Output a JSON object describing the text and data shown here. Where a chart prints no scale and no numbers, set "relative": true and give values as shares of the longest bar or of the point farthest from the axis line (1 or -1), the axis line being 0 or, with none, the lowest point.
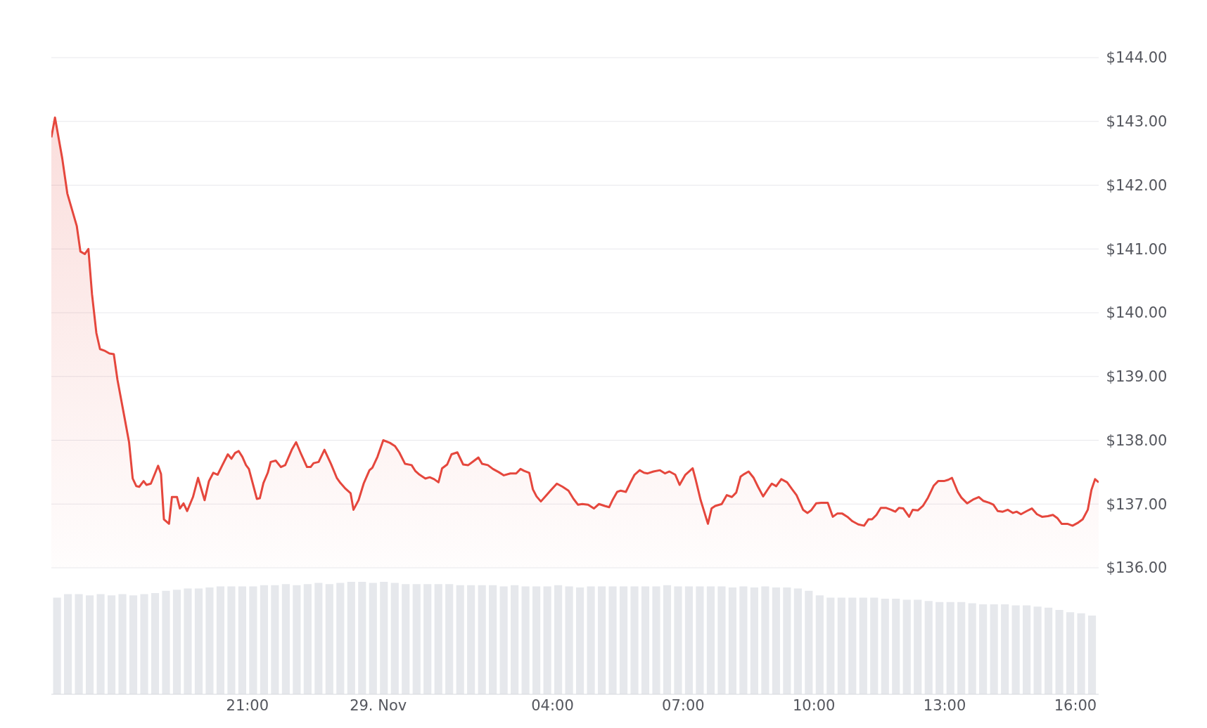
{
  "chart_data": [
    {
      "type": "area",
      "series": [
        {
          "color": "#e5473d",
          "x": [
            "--11-28T16:30",
            "--11-28T16:35",
            "--11-28T16:45",
            "--11-28T16:52",
            "--11-28T17:05",
            "--11-28T17:10",
            "--11-28T17:16",
            "--11-28T17:21",
            "--11-28T17:26",
            "--11-28T17:32",
            "--11-28T17:37",
            "--11-28T17:44",
            "--11-28T17:50",
            "--11-28T17:56",
            "--11-28T18:01",
            "--11-28T18:11",
            "--11-28T18:17",
            "--11-28T18:22",
            "--11-28T18:27",
            "--11-28T18:31",
            "--11-28T18:37",
            "--11-28T18:41",
            "--11-28T18:47",
            "--11-28T18:57",
            "--11-28T19:01",
            "--11-28T19:05",
            "--11-28T19:12",
            "--11-28T19:16",
            "--11-28T19:23",
            "--11-28T19:27",
            "--11-28T19:32",
            "--11-28T19:37",
            "--11-28T19:45",
            "--11-28T19:52",
            "--11-28T20:01",
            "--11-28T20:07",
            "--11-28T20:13",
            "--11-28T20:19",
            "--11-28T20:25",
            "--11-28T20:33",
            "--11-28T20:38",
            "--11-28T20:43",
            "--11-28T20:48",
            "--11-28T20:53",
            "--11-28T20:58",
            "--11-28T21:02",
            "--11-28T21:13",
            "--11-28T21:17",
            "--11-28T21:22",
            "--11-28T21:28",
            "--11-28T21:32",
            "--11-28T21:39",
            "--11-28T21:46",
            "--11-28T21:52",
            "--11-28T22:01",
            "--11-28T22:07",
            "--11-28T22:14",
            "--11-28T22:22",
            "--11-28T22:27",
            "--11-28T22:31",
            "--11-28T22:38",
            "--11-28T22:46",
            "--11-28T22:55",
            "--11-28T23:03",
            "--11-28T23:08",
            "--11-28T23:15",
            "--11-28T23:22",
            "--11-28T23:26",
            "--11-28T23:33",
            "--11-28T23:40",
            "--11-28T23:48",
            "--11-28T23:52",
            "--11-28T23:59",
            "--11-29T00:07",
            "--11-29T00:16",
            "--11-29T00:23",
            "--11-29T00:29",
            "--11-29T00:37",
            "--11-29T00:46",
            "--11-29T00:51",
            "--11-29T00:57",
            "--11-29T01:05",
            "--11-29T01:11",
            "--11-29T01:17",
            "--11-29T01:23",
            "--11-29T01:28",
            "--11-29T01:35",
            "--11-29T01:41",
            "--11-29T01:49",
            "--11-29T01:57",
            "--11-29T02:04",
            "--11-29T02:11",
            "--11-29T02:18",
            "--11-29T02:23",
            "--11-29T02:31",
            "--11-29T02:38",
            "--11-29T02:46",
            "--11-29T02:53",
            "--11-29T03:02",
            "--11-29T03:10",
            "--11-29T03:16",
            "--11-29T03:21",
            "--11-29T03:28",
            "--11-29T03:33",
            "--11-29T03:38",
            "--11-29T03:44",
            "--11-29T03:51",
            "--11-29T03:58",
            "--11-29T04:06",
            "--11-29T04:14",
            "--11-29T04:22",
            "--11-29T04:29",
            "--11-29T04:35",
            "--11-29T04:41",
            "--11-29T04:49",
            "--11-29T04:57",
            "--11-29T05:04",
            "--11-29T05:12",
            "--11-29T05:18",
            "--11-29T05:23",
            "--11-29T05:29",
            "--11-29T05:34",
            "--11-29T05:41",
            "--11-29T05:47",
            "--11-29T05:53",
            "--11-29T06:00",
            "--11-29T06:06",
            "--11-29T06:11",
            "--11-29T06:19",
            "--11-29T06:28",
            "--11-29T06:35",
            "--11-29T06:41",
            "--11-29T06:49",
            "--11-29T06:55",
            "--11-29T07:03",
            "--11-29T07:13",
            "--11-29T07:17",
            "--11-29T07:24",
            "--11-29T07:34",
            "--11-29T07:39",
            "--11-29T07:44",
            "--11-29T07:53",
            "--11-29T08:00",
            "--11-29T08:07",
            "--11-29T08:13",
            "--11-29T08:19",
            "--11-29T08:24",
            "--11-29T08:30",
            "--11-29T08:37",
            "--11-29T08:43",
            "--11-29T08:50",
            "--11-29T08:57",
            "--11-29T09:02",
            "--11-29T09:08",
            "--11-29T09:15",
            "--11-29T09:23",
            "--11-29T09:30",
            "--11-29T09:36",
            "--11-29T09:45",
            "--11-29T09:51",
            "--11-29T09:56",
            "--11-29T10:03",
            "--11-29T10:10",
            "--11-29T10:19",
            "--11-29T10:26",
            "--11-29T10:32",
            "--11-29T10:39",
            "--11-29T10:46",
            "--11-29T10:53",
            "--11-29T11:01",
            "--11-29T11:09",
            "--11-29T11:15",
            "--11-29T11:20",
            "--11-29T11:26",
            "--11-29T11:32",
            "--11-29T11:39",
            "--11-29T11:46",
            "--11-29T11:52",
            "--11-29T11:57",
            "--11-29T12:03",
            "--11-29T12:11",
            "--11-29T12:16",
            "--11-29T12:23",
            "--11-29T12:30",
            "--11-29T12:37",
            "--11-29T12:45",
            "--11-29T12:51",
            "--11-29T12:59",
            "--11-29T13:05",
            "--11-29T13:10",
            "--11-29T13:18",
            "--11-29T13:23",
            "--11-29T13:31",
            "--11-29T13:39",
            "--11-29T13:47",
            "--11-29T13:53",
            "--11-29T14:01",
            "--11-29T14:07",
            "--11-29T14:13",
            "--11-29T14:20",
            "--11-29T14:27",
            "--11-29T14:34",
            "--11-29T14:39",
            "--11-29T14:45",
            "--11-29T14:53",
            "--11-29T15:00",
            "--11-29T15:07",
            "--11-29T15:14",
            "--11-29T15:22",
            "--11-29T15:29",
            "--11-29T15:35",
            "--11-29T15:41",
            "--11-29T15:49",
            "--11-29T15:56",
            "--11-29T16:04",
            "--11-29T16:10",
            "--11-29T16:17",
            "--11-29T16:22",
            "--11-29T16:27",
            "--11-29T16:32"
          ],
          "values": [
            142.75,
            143.06,
            142.42,
            141.87,
            141.36,
            140.96,
            140.92,
            141.0,
            140.29,
            139.68,
            139.43,
            139.4,
            139.36,
            139.35,
            138.95,
            138.34,
            137.97,
            137.4,
            137.28,
            137.27,
            137.36,
            137.3,
            137.32,
            137.6,
            137.47,
            136.76,
            136.69,
            137.11,
            137.11,
            136.93,
            137.01,
            136.89,
            137.11,
            137.41,
            137.06,
            137.36,
            137.49,
            137.46,
            137.6,
            137.78,
            137.71,
            137.8,
            137.83,
            137.74,
            137.61,
            137.55,
            137.08,
            137.09,
            137.33,
            137.49,
            137.66,
            137.68,
            137.58,
            137.61,
            137.85,
            137.97,
            137.78,
            137.58,
            137.58,
            137.64,
            137.66,
            137.85,
            137.63,
            137.41,
            137.33,
            137.24,
            137.17,
            136.91,
            137.06,
            137.32,
            137.53,
            137.57,
            137.74,
            138.0,
            137.96,
            137.91,
            137.81,
            137.63,
            137.61,
            137.52,
            137.46,
            137.4,
            137.42,
            137.39,
            137.34,
            137.56,
            137.62,
            137.78,
            137.81,
            137.62,
            137.61,
            137.67,
            137.73,
            137.63,
            137.61,
            137.55,
            137.5,
            137.45,
            137.48,
            137.48,
            137.55,
            137.52,
            137.49,
            137.23,
            137.12,
            137.04,
            137.13,
            137.22,
            137.32,
            137.27,
            137.21,
            137.08,
            136.99,
            137.0,
            136.99,
            136.93,
            137.0,
            136.97,
            136.95,
            137.07,
            137.19,
            137.21,
            137.19,
            137.33,
            137.46,
            137.53,
            137.49,
            137.48,
            137.51,
            137.53,
            137.48,
            137.51,
            137.46,
            137.3,
            137.46,
            137.56,
            137.39,
            137.06,
            136.69,
            136.93,
            136.97,
            137.0,
            137.14,
            137.11,
            137.18,
            137.43,
            137.47,
            137.51,
            137.41,
            137.27,
            137.12,
            137.24,
            137.32,
            137.28,
            137.39,
            137.34,
            137.23,
            137.14,
            136.91,
            136.86,
            136.9,
            137.01,
            137.02,
            137.02,
            136.8,
            136.85,
            136.85,
            136.8,
            136.73,
            136.68,
            136.66,
            136.76,
            136.76,
            136.83,
            136.94,
            136.94,
            136.91,
            136.88,
            136.94,
            136.93,
            136.8,
            136.91,
            136.9,
            136.97,
            137.1,
            137.29,
            137.36,
            137.36,
            137.38,
            137.41,
            137.19,
            137.1,
            137.01,
            137.07,
            137.11,
            137.05,
            137.02,
            136.99,
            136.89,
            136.88,
            136.91,
            136.86,
            136.88,
            136.84,
            136.89,
            136.93,
            136.84,
            136.8,
            136.81,
            136.83,
            136.78,
            136.69,
            136.69,
            136.66,
            136.71,
            136.76,
            136.91,
            137.22,
            137.39,
            137.34
          ]
        }
      ],
      "xlim": [
        "--11-28T16:30",
        "--11-29T16:32"
      ],
      "ylim": [
        136,
        144
      ],
      "yticks": [
        {
          "value": 136,
          "label": "$136.00"
        },
        {
          "value": 137,
          "label": "$137.00"
        },
        {
          "value": 138,
          "label": "$138.00"
        },
        {
          "value": 139,
          "label": "$139.00"
        },
        {
          "value": 140,
          "label": "$140.00"
        },
        {
          "value": 141,
          "label": "$141.00"
        },
        {
          "value": 142,
          "label": "$142.00"
        },
        {
          "value": 143,
          "label": "$143.00"
        },
        {
          "value": 144,
          "label": "$144.00"
        }
      ],
      "grid": "y",
      "tick_labels": "y",
      "marker": "none",
      "line_style": "solid"
    },
    {
      "type": "bar",
      "relative": true,
      "color": "#e6e8ec",
      "x": [
        "--11-28T16:38",
        "--11-28T16:53",
        "--11-28T17:08",
        "--11-28T17:23",
        "--11-28T17:38",
        "--11-28T17:53",
        "--11-28T18:08",
        "--11-28T18:23",
        "--11-28T18:38",
        "--11-28T18:53",
        "--11-28T19:08",
        "--11-28T19:23",
        "--11-28T19:38",
        "--11-28T19:53",
        "--11-28T20:08",
        "--11-28T20:23",
        "--11-28T20:38",
        "--11-28T20:53",
        "--11-28T21:08",
        "--11-28T21:23",
        "--11-28T21:38",
        "--11-28T21:53",
        "--11-28T22:08",
        "--11-28T22:23",
        "--11-28T22:38",
        "--11-28T22:53",
        "--11-28T23:08",
        "--11-28T23:23",
        "--11-28T23:38",
        "--11-28T23:53",
        "--11-29T00:08",
        "--11-29T00:23",
        "--11-29T00:38",
        "--11-29T00:53",
        "--11-29T01:08",
        "--11-29T01:23",
        "--11-29T01:38",
        "--11-29T01:53",
        "--11-29T02:08",
        "--11-29T02:23",
        "--11-29T02:38",
        "--11-29T02:53",
        "--11-29T03:08",
        "--11-29T03:23",
        "--11-29T03:38",
        "--11-29T03:53",
        "--11-29T04:08",
        "--11-29T04:23",
        "--11-29T04:38",
        "--11-29T04:53",
        "--11-29T05:08",
        "--11-29T05:23",
        "--11-29T05:38",
        "--11-29T05:53",
        "--11-29T06:08",
        "--11-29T06:23",
        "--11-29T06:38",
        "--11-29T06:53",
        "--11-29T07:08",
        "--11-29T07:23",
        "--11-29T07:38",
        "--11-29T07:53",
        "--11-29T08:08",
        "--11-29T08:23",
        "--11-29T08:38",
        "--11-29T08:53",
        "--11-29T09:08",
        "--11-29T09:23",
        "--11-29T09:38",
        "--11-29T09:53",
        "--11-29T10:08",
        "--11-29T10:23",
        "--11-29T10:38",
        "--11-29T10:53",
        "--11-29T11:08",
        "--11-29T11:23",
        "--11-29T11:38",
        "--11-29T11:53",
        "--11-29T12:08",
        "--11-29T12:23",
        "--11-29T12:38",
        "--11-29T12:53",
        "--11-29T13:08",
        "--11-29T13:23",
        "--11-29T13:38",
        "--11-29T13:53",
        "--11-29T14:08",
        "--11-29T14:23",
        "--11-29T14:38",
        "--11-29T14:53",
        "--11-29T15:08",
        "--11-29T15:23",
        "--11-29T15:38",
        "--11-29T15:53",
        "--11-29T16:08",
        "--11-29T16:23"
      ],
      "values": [
        0.86,
        0.89,
        0.89,
        0.88,
        0.89,
        0.88,
        0.89,
        0.88,
        0.89,
        0.9,
        0.92,
        0.93,
        0.94,
        0.94,
        0.95,
        0.96,
        0.96,
        0.96,
        0.96,
        0.97,
        0.97,
        0.98,
        0.97,
        0.98,
        0.99,
        0.98,
        0.99,
        1,
        1,
        0.99,
        1,
        0.99,
        0.98,
        0.98,
        0.98,
        0.98,
        0.98,
        0.97,
        0.97,
        0.97,
        0.97,
        0.96,
        0.97,
        0.96,
        0.96,
        0.96,
        0.97,
        0.96,
        0.95,
        0.96,
        0.96,
        0.96,
        0.96,
        0.96,
        0.96,
        0.96,
        0.97,
        0.96,
        0.96,
        0.96,
        0.96,
        0.96,
        0.95,
        0.96,
        0.95,
        0.96,
        0.95,
        0.95,
        0.94,
        0.92,
        0.88,
        0.86,
        0.86,
        0.86,
        0.86,
        0.86,
        0.85,
        0.85,
        0.84,
        0.84,
        0.83,
        0.82,
        0.82,
        0.82,
        0.81,
        0.8,
        0.8,
        0.8,
        0.79,
        0.79,
        0.78,
        0.77,
        0.75,
        0.73,
        0.72,
        0.7
      ],
      "xlim": [
        "--11-28T16:30",
        "--11-29T16:32"
      ],
      "xticks": [
        {
          "value": "--11-28T21:00",
          "label": "21:00"
        },
        {
          "value": "--11-29T00:00",
          "label": "29. Nov"
        },
        {
          "value": "--11-29T04:00",
          "label": "04:00"
        },
        {
          "value": "--11-29T07:00",
          "label": "07:00"
        },
        {
          "value": "--11-29T10:00",
          "label": "10:00"
        },
        {
          "value": "--11-29T13:00",
          "label": "13:00"
        },
        {
          "value": "--11-29T16:00",
          "label": "16:00"
        }
      ],
      "tick_labels": "x"
    }
  ]
}
